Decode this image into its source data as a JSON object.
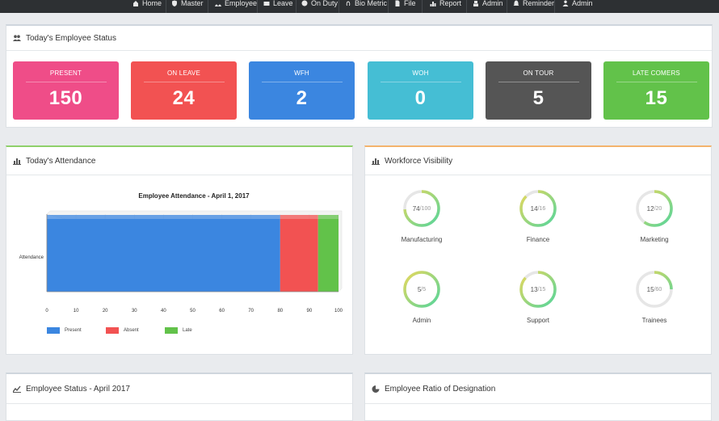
{
  "nav": {
    "items": [
      {
        "label": "Home",
        "icon": "home-icon"
      },
      {
        "label": "Master",
        "icon": "shield-icon"
      },
      {
        "label": "Employee",
        "icon": "users-icon"
      },
      {
        "label": "Leave",
        "icon": "mail-icon"
      },
      {
        "label": "On Duty",
        "icon": "clock-icon"
      },
      {
        "label": "Bio Metric",
        "icon": "fingerprint-icon"
      },
      {
        "label": "File",
        "icon": "file-icon"
      },
      {
        "label": "Report",
        "icon": "chart-icon"
      },
      {
        "label": "Admin",
        "icon": "user-lock-icon"
      },
      {
        "label": "Reminder",
        "icon": "bell-icon"
      },
      {
        "label": "Admin",
        "icon": "user-icon"
      }
    ]
  },
  "status": {
    "title": "Today's Employee Status",
    "cards": [
      {
        "label": "PRESENT",
        "value": "150",
        "color": "#ef4d88"
      },
      {
        "label": "ON LEAVE",
        "value": "24",
        "color": "#f25252"
      },
      {
        "label": "WFH",
        "value": "2",
        "color": "#3b86e0"
      },
      {
        "label": "WOH",
        "value": "0",
        "color": "#45bed4"
      },
      {
        "label": "ON TOUR",
        "value": "5",
        "color": "#555555"
      },
      {
        "label": "LATE COMERS",
        "value": "15",
        "color": "#62c24a"
      }
    ]
  },
  "attendance": {
    "title": "Today's Attendance"
  },
  "chart_data": {
    "type": "bar",
    "orientation": "horizontal",
    "stacked": true,
    "title": "Employee Attendance - April 1, 2017",
    "categories": [
      "Attendance"
    ],
    "series": [
      {
        "name": "Present",
        "values": [
          80
        ],
        "color": "#3b86e0"
      },
      {
        "name": "Absent",
        "values": [
          13
        ],
        "color": "#f25252"
      },
      {
        "name": "Late",
        "values": [
          7
        ],
        "color": "#62c24a"
      }
    ],
    "xlim": [
      0,
      100
    ],
    "xticks": [
      0,
      10,
      20,
      30,
      40,
      50,
      60,
      70,
      80,
      90,
      100
    ],
    "grid": true,
    "legend": "bottom-left"
  },
  "workforce": {
    "title": "Workforce Visibility",
    "gauges": [
      {
        "label": "Manufacturing",
        "value": 74,
        "total": 100,
        "value_text": "74",
        "total_text": "/100"
      },
      {
        "label": "Finance",
        "value": 14,
        "total": 16,
        "value_text": "14",
        "total_text": "/16"
      },
      {
        "label": "Marketing",
        "value": 12,
        "total": 20,
        "value_text": "12",
        "total_text": "/20"
      },
      {
        "label": "Admin",
        "value": 5,
        "total": 5,
        "value_text": "5",
        "total_text": "/5"
      },
      {
        "label": "Support",
        "value": 13,
        "total": 15,
        "value_text": "13",
        "total_text": "/15"
      },
      {
        "label": "Trainees",
        "value": 15,
        "total": 60,
        "value_text": "15",
        "total_text": "/60"
      }
    ]
  },
  "bottom": {
    "status_title": "Employee Status - April 2017",
    "ratio_title": "Employee Ratio of Designation"
  }
}
